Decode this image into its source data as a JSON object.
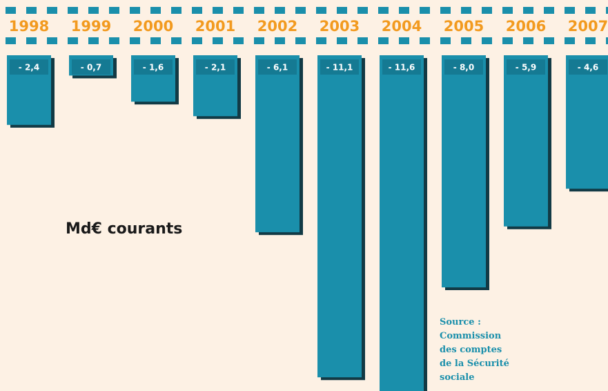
{
  "chart_data": {
    "type": "bar",
    "categories": [
      "1998",
      "1999",
      "2000",
      "2001",
      "2002",
      "2003",
      "2004",
      "2005",
      "2006",
      "2007"
    ],
    "values": [
      -2.4,
      -0.7,
      -1.6,
      -2.1,
      -6.1,
      -11.1,
      -11.6,
      -8.0,
      -5.9,
      -4.6
    ],
    "value_labels": [
      "- 2,4",
      "- 0,7",
      "- 1,6",
      "- 2,1",
      "- 6,1",
      "- 11,1",
      "- 11,6",
      "- 8,0",
      "- 5,9",
      "- 4,6"
    ],
    "color": "#1a8fab",
    "annotation": "Md€ courants",
    "source": [
      "Source :",
      "Commission",
      "des comptes",
      "de la Sécurité",
      "sociale"
    ]
  }
}
